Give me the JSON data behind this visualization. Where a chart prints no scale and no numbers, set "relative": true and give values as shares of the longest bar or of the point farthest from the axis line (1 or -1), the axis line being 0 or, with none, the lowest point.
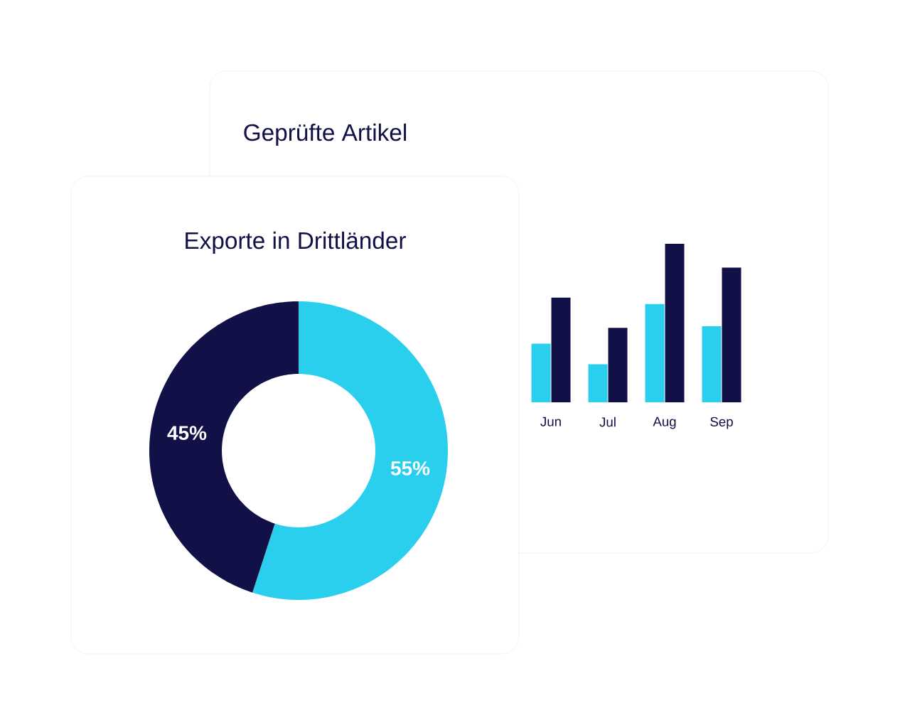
{
  "chart_data": [
    {
      "type": "bar",
      "title": "Geprüfte Artikel",
      "relative": true,
      "categories": [
        "Jun",
        "Jul",
        "Aug",
        "Sep"
      ],
      "series": [
        {
          "color": "#29cfed",
          "values": [
            0.37,
            0.24,
            0.62,
            0.48
          ]
        },
        {
          "color": "#121147",
          "values": [
            0.66,
            0.47,
            1,
            0.85
          ]
        }
      ]
    },
    {
      "type": "donut",
      "title": "Exporte in Drittländer",
      "categories": [
        null,
        null
      ],
      "values": [
        55,
        45
      ],
      "colors": [
        "#29cfed",
        "#121147"
      ],
      "value_labels": [
        "55%",
        "45%"
      ]
    }
  ]
}
